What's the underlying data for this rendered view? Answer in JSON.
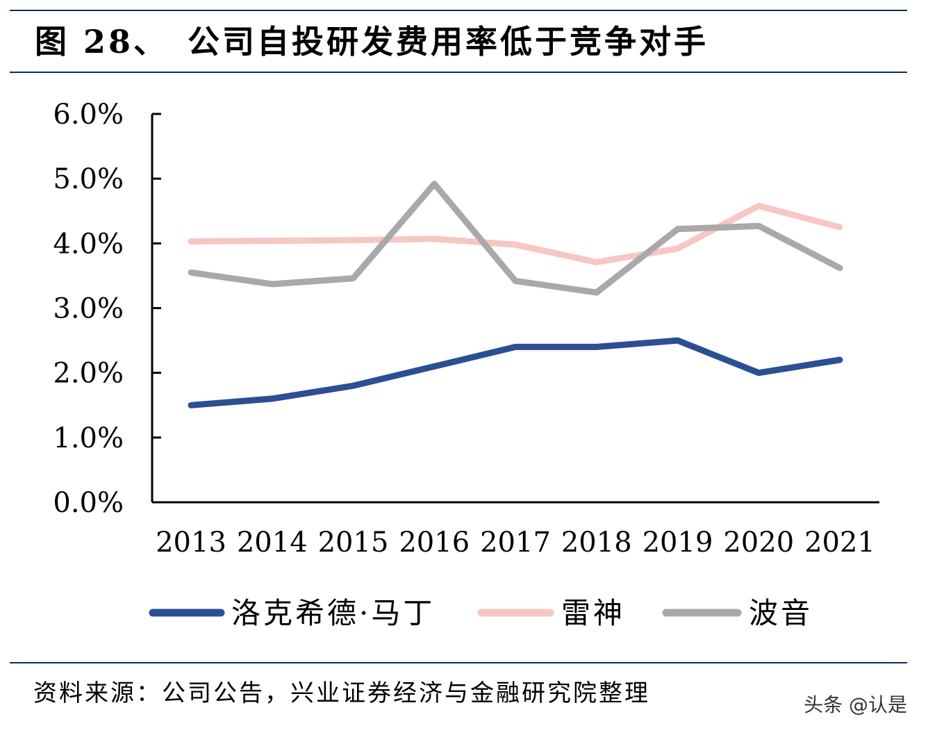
{
  "header": {
    "figure_number": "图 28、",
    "figure_title": "公司自投研发费用率低于竞争对手"
  },
  "chart_data": {
    "type": "line",
    "title": "公司自投研发费用率低于竞争对手",
    "categories": [
      "2013",
      "2014",
      "2015",
      "2016",
      "2017",
      "2018",
      "2019",
      "2020",
      "2021"
    ],
    "y_ticks": [
      "0.0%",
      "1.0%",
      "2.0%",
      "3.0%",
      "4.0%",
      "5.0%",
      "6.0%"
    ],
    "ylim": [
      0,
      6.0
    ],
    "y_unit": "%",
    "grid": false,
    "legend_position": "bottom",
    "series": [
      {
        "name": "洛克希德·马丁",
        "color": "#2b4f93",
        "values": [
          1.5,
          1.6,
          1.8,
          2.1,
          2.4,
          2.4,
          2.5,
          2.0,
          2.2
        ]
      },
      {
        "name": "雷神",
        "color": "#f7c7c3",
        "values": [
          4.03,
          4.04,
          4.05,
          4.07,
          3.98,
          3.71,
          3.92,
          4.58,
          4.25
        ]
      },
      {
        "name": "波音",
        "color": "#a9a9ab",
        "values": [
          3.55,
          3.37,
          3.46,
          4.92,
          3.42,
          3.24,
          4.22,
          4.27,
          3.62
        ]
      }
    ]
  },
  "footer": {
    "source": "资料来源：公司公告，兴业证券经济与金融研究院整理",
    "watermark": "头条 @认是"
  }
}
